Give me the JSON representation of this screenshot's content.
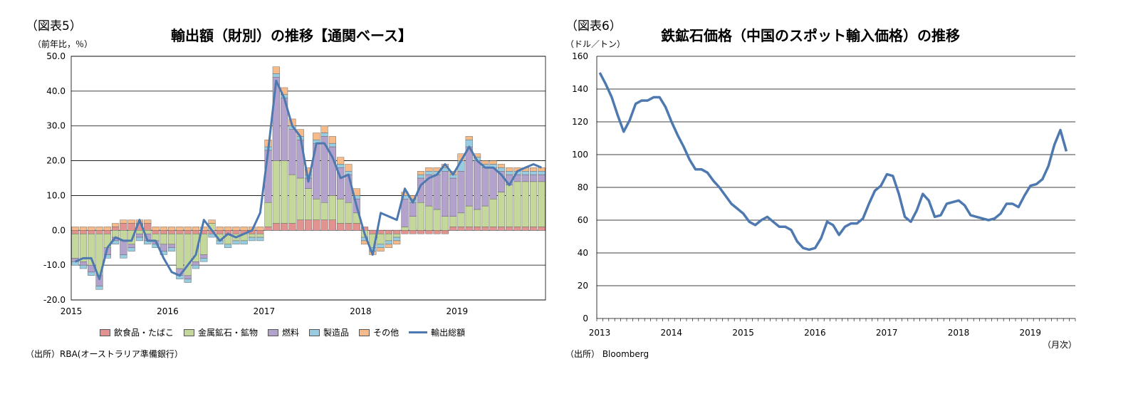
{
  "left": {
    "fig_label": "（図表5）",
    "title": "輸出額（財別）の推移【通関ベース】",
    "unit": "（前年比，％）",
    "source": "（出所）RBA(オーストラリア準備銀行）",
    "legend": [
      {
        "label": "飲食品・たばこ",
        "color": "#e2928f"
      },
      {
        "label": "金属鉱石・鉱物",
        "color": "#c4d89c"
      },
      {
        "label": "燃料",
        "color": "#b2a2cc"
      },
      {
        "label": "製造品",
        "color": "#98cce0"
      },
      {
        "label": "その他",
        "color": "#f7bb8a"
      },
      {
        "label": "輸出総額",
        "color": "#4e79b0"
      }
    ]
  },
  "right": {
    "fig_label": "（図表6）",
    "title": "鉄鉱石価格（中国のスポット輸入価格）の推移",
    "unit": "（ドル／トン）",
    "x_unit": "（月次）",
    "source": "（出所） Bloomberg"
  },
  "chart_data": [
    {
      "type": "bar",
      "stacked": true,
      "title": "輸出額（財別）の推移【通関ベース】",
      "ylabel": "（前年比，％）",
      "ylim": [
        -20,
        50
      ],
      "yticks": [
        -20,
        -10,
        0,
        10,
        20,
        30,
        40,
        50
      ],
      "ytick_labels": [
        "-20.0",
        "-10.0",
        "0.0",
        "10.0",
        "20.0",
        "30.0",
        "40.0",
        "50.0"
      ],
      "xtick_labels": [
        "2015",
        "2016",
        "2017",
        "2018",
        "2019"
      ],
      "months_per_year": 12,
      "series": [
        {
          "name": "飲食品・たばこ",
          "color": "#e2928f",
          "values": [
            -1,
            -1,
            -1,
            -1,
            -1,
            1,
            2,
            2,
            2,
            2,
            -1,
            -1,
            -1,
            -1,
            -1,
            -1,
            -1,
            -1,
            -1,
            -1,
            -1,
            -1,
            -1,
            -1,
            1,
            2,
            2,
            2,
            3,
            3,
            3,
            3,
            3,
            2,
            2,
            2,
            1,
            -1,
            -1,
            -1,
            -1,
            -1,
            -1,
            -1,
            -1,
            -1,
            -1,
            1,
            1,
            1,
            1,
            1,
            1,
            1,
            1,
            1,
            1,
            1,
            1
          ]
        },
        {
          "name": "金属鉱石・鉱物",
          "color": "#c4d89c",
          "values": [
            -7,
            -8,
            -9,
            -12,
            -4,
            -2,
            -3,
            -4,
            -1,
            -1,
            -2,
            -3,
            -3,
            -10,
            -12,
            -8,
            -6,
            2,
            -2,
            -3,
            -2,
            -2,
            -1,
            -1,
            7,
            18,
            18,
            14,
            12,
            9,
            6,
            5,
            7,
            7,
            6,
            3,
            -2,
            -4,
            -3,
            -2,
            -1,
            1,
            4,
            8,
            7,
            6,
            4,
            3,
            4,
            6,
            5,
            6,
            8,
            10,
            12,
            13,
            13,
            13,
            13
          ]
        },
        {
          "name": "燃料",
          "color": "#b2a2cc",
          "values": [
            -1,
            -1,
            -2,
            -3,
            -2,
            -1,
            -4,
            -1,
            -1,
            -2,
            -1,
            -2,
            -1,
            -2,
            -1,
            -1,
            -1,
            0,
            0,
            0,
            0,
            0,
            0,
            0,
            15,
            24,
            18,
            13,
            11,
            3,
            16,
            19,
            14,
            9,
            8,
            4,
            0,
            0,
            0,
            0,
            0,
            8,
            4,
            7,
            9,
            10,
            13,
            11,
            12,
            17,
            14,
            11,
            9,
            6,
            3,
            2,
            2,
            2,
            2
          ]
        },
        {
          "name": "製造品",
          "color": "#98cce0",
          "values": [
            -1,
            -1,
            -1,
            -1,
            -1,
            -1,
            -1,
            -1,
            -1,
            -1,
            -1,
            -1,
            -1,
            -1,
            -1,
            -1,
            -1,
            -1,
            -1,
            -1,
            -1,
            -1,
            -1,
            -1,
            1,
            1,
            1,
            1,
            1,
            1,
            1,
            1,
            1,
            1,
            1,
            1,
            -1,
            -1,
            -1,
            -1,
            -1,
            1,
            1,
            1,
            1,
            1,
            1,
            1,
            3,
            2,
            1,
            1,
            1,
            1,
            1,
            1,
            1,
            1,
            1
          ]
        },
        {
          "name": "その他",
          "color": "#f7bb8a",
          "values": [
            1,
            1,
            1,
            1,
            1,
            1,
            1,
            1,
            1,
            1,
            1,
            1,
            1,
            1,
            1,
            1,
            1,
            1,
            1,
            1,
            1,
            1,
            1,
            1,
            2,
            2,
            2,
            2,
            2,
            2,
            2,
            2,
            2,
            2,
            2,
            2,
            -1,
            -1,
            -1,
            -1,
            -1,
            1,
            1,
            1,
            1,
            1,
            1,
            1,
            2,
            1,
            1,
            1,
            1,
            1,
            1,
            1,
            1,
            1,
            1
          ]
        }
      ],
      "total": {
        "name": "輸出総額",
        "color": "#4e79b0",
        "values": [
          -9,
          -8,
          -8,
          -14,
          -5,
          -2,
          -3,
          -3,
          3,
          -3,
          -3,
          -8,
          -12,
          -13,
          -10,
          -7,
          3,
          0,
          -3,
          -1,
          -2,
          -1,
          0,
          5,
          23,
          43,
          38,
          30,
          27,
          14,
          25,
          25,
          21,
          15,
          16,
          7,
          -1,
          -7,
          5,
          4,
          3,
          12,
          8,
          13,
          15,
          16,
          19,
          16,
          20,
          24,
          20,
          18,
          18,
          16,
          13,
          17,
          18,
          19,
          18
        ]
      }
    },
    {
      "type": "line",
      "title": "鉄鉱石価格（中国のスポット輸入価格）の推移",
      "ylabel": "（ドル／トン）",
      "xlabel": "（月次）",
      "ylim": [
        0,
        160
      ],
      "yticks": [
        0,
        20,
        40,
        60,
        80,
        100,
        120,
        140,
        160
      ],
      "xtick_labels": [
        "2013",
        "2014",
        "2015",
        "2016",
        "2017",
        "2018",
        "2019"
      ],
      "months_per_year": 12,
      "series": [
        {
          "name": "鉄鉱石価格",
          "color": "#4e79b0",
          "values": [
            150,
            143,
            135,
            124,
            114,
            121,
            131,
            133,
            133,
            135,
            135,
            129,
            120,
            112,
            105,
            97,
            91,
            91,
            89,
            84,
            80,
            75,
            70,
            67,
            64,
            59,
            57,
            60,
            62,
            59,
            56,
            56,
            54,
            47,
            43,
            42,
            43,
            49,
            59,
            57,
            51,
            56,
            58,
            58,
            61,
            70,
            78,
            81,
            88,
            87,
            76,
            62,
            59,
            66,
            76,
            72,
            62,
            63,
            70,
            71,
            72,
            69,
            63,
            62,
            61,
            60,
            61,
            64,
            70,
            70,
            68,
            75,
            81,
            82,
            85,
            93,
            106,
            115,
            102
          ]
        }
      ]
    }
  ]
}
